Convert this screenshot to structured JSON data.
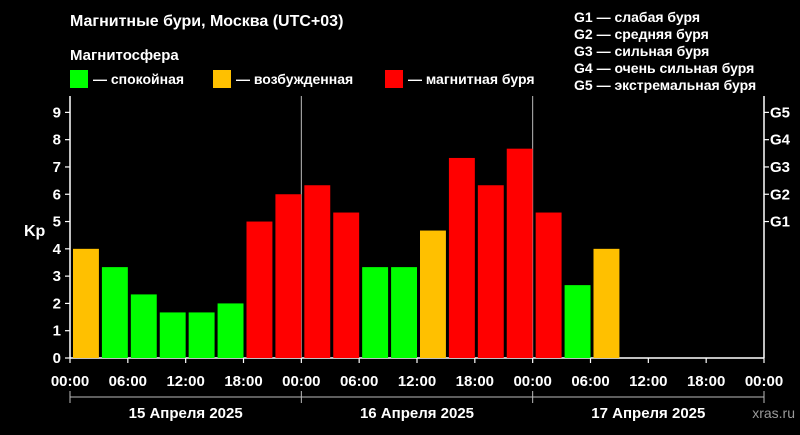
{
  "chart_data": {
    "type": "bar",
    "title": "Магнитные бури, Москва (UTC+03)",
    "legend_title": "Магнитосфера",
    "legend": [
      {
        "label": "— спокойная",
        "color": "#00ff00"
      },
      {
        "label": "— возбужденная",
        "color": "#ffc000"
      },
      {
        "label": "— магнитная буря",
        "color": "#ff0000"
      }
    ],
    "storm_scale": [
      "G1 — слабая буря",
      "G2 — средняя буря",
      "G3 — сильная буря",
      "G4 — очень сильная буря",
      "G5 — экстремальная буря"
    ],
    "ylabel": "Kp",
    "ylim": [
      0,
      9.6
    ],
    "y_ticks": [
      "0",
      "1",
      "2",
      "3",
      "4",
      "5",
      "6",
      "7",
      "8",
      "9"
    ],
    "right_ticks": [
      {
        "label": "G1",
        "value": 5
      },
      {
        "label": "G2",
        "value": 6
      },
      {
        "label": "G3",
        "value": 7
      },
      {
        "label": "G4",
        "value": 8
      },
      {
        "label": "G5",
        "value": 9
      }
    ],
    "x_ticks": [
      "00:00",
      "06:00",
      "12:00",
      "18:00",
      "00:00",
      "06:00",
      "12:00",
      "18:00",
      "00:00",
      "06:00",
      "12:00",
      "18:00",
      "00:00"
    ],
    "days": [
      "15 Апреля 2025",
      "16 Апреля 2025",
      "17 Апреля 2025"
    ],
    "slots_total": 24,
    "values": [
      4,
      3.33,
      2.33,
      1.67,
      1.67,
      2,
      5,
      6,
      6.33,
      5.33,
      3.33,
      3.33,
      4.67,
      7.33,
      6.33,
      7.67,
      5.33,
      2.67,
      4
    ],
    "status": [
      "excited",
      "quiet",
      "quiet",
      "quiet",
      "quiet",
      "quiet",
      "storm",
      "storm",
      "storm",
      "storm",
      "quiet",
      "quiet",
      "excited",
      "storm",
      "storm",
      "storm",
      "storm",
      "quiet",
      "excited"
    ],
    "colors": {
      "quiet": "#00ff00",
      "excited": "#ffc000",
      "storm": "#ff0000"
    },
    "grid": false
  },
  "watermark": "xras.ru"
}
